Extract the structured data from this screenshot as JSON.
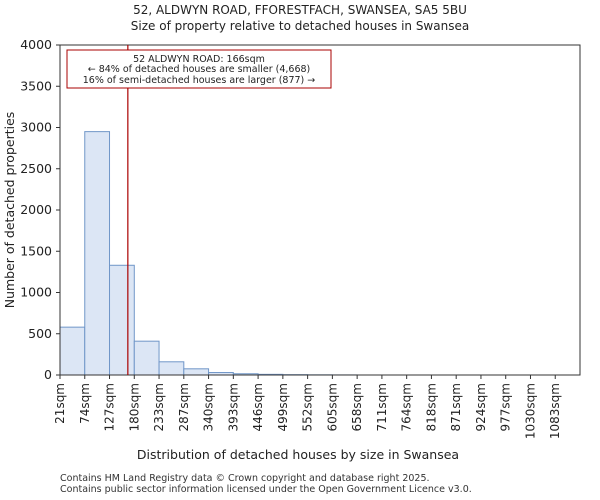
{
  "title_line1": "52, ALDWYN ROAD, FFORESTFACH, SWANSEA, SA5 5BU",
  "title_line2": "Size of property relative to detached houses in Swansea",
  "footer_line1": "Contains HM Land Registry data © Crown copyright and database right 2025.",
  "footer_line2": "Contains public sector information licensed under the Open Government Licence v3.0.",
  "colors": {
    "bar_fill": "#dce6f5",
    "bar_stroke": "#7096c8",
    "marker": "#aa0000",
    "annotation_border": "#aa0000"
  },
  "chart_data": {
    "type": "bar",
    "title": "52, ALDWYN ROAD, FFORESTFACH, SWANSEA, SA5 5BU",
    "subtitle": "Size of property relative to detached houses in Swansea",
    "xlabel": "Distribution of detached houses by size in Swansea",
    "ylabel": "Number of detached properties",
    "categories": [
      "21sqm",
      "74sqm",
      "127sqm",
      "180sqm",
      "233sqm",
      "287sqm",
      "340sqm",
      "393sqm",
      "446sqm",
      "499sqm",
      "552sqm",
      "605sqm",
      "658sqm",
      "711sqm",
      "764sqm",
      "818sqm",
      "871sqm",
      "924sqm",
      "977sqm",
      "1030sqm",
      "1083sqm"
    ],
    "values": [
      580,
      2950,
      1330,
      410,
      160,
      75,
      30,
      15,
      8,
      4,
      2,
      1,
      0,
      0,
      0,
      0,
      0,
      0,
      0,
      0,
      0
    ],
    "ylim": [
      0,
      4000
    ],
    "yticks": [
      0,
      500,
      1000,
      1500,
      2000,
      2500,
      3000,
      3500,
      4000
    ],
    "marker": {
      "value_sqm": 166,
      "bin_position": 2.74
    },
    "annotation": {
      "line1": "52 ALDWYN ROAD: 166sqm",
      "line2": "← 84% of detached houses are smaller (4,668)",
      "line3": "16% of semi-detached houses are larger (877) →"
    },
    "grid": false
  }
}
